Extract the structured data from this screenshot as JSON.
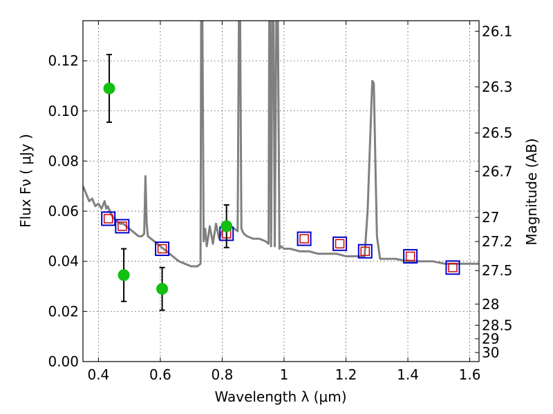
{
  "chart_data": {
    "type": "scatter",
    "title": "",
    "xlabel": "Wavelength  λ (μm)",
    "ylabel": "Flux  Fν  ( μJy )",
    "y2label": "Magnitude (AB)",
    "xlim": [
      0.35,
      1.63
    ],
    "ylim": [
      0.0,
      0.136
    ],
    "grid": true,
    "x_ticks": [
      0.4,
      0.6,
      0.8,
      1.0,
      1.2,
      1.4,
      1.6
    ],
    "x_tick_labels": [
      "0.4",
      "0.6",
      "0.8",
      "1",
      "1.2",
      "1.4",
      "1.6"
    ],
    "y_ticks": [
      0.0,
      0.02,
      0.04,
      0.06,
      0.08,
      0.1,
      0.12
    ],
    "y_tick_labels": [
      "0.00",
      "0.02",
      "0.04",
      "0.06",
      "0.08",
      "0.10",
      "0.12"
    ],
    "y2_ticks": [
      {
        "label": "26.1",
        "flux": 0.1318
      },
      {
        "label": "26.3",
        "flux": 0.1096
      },
      {
        "label": "26.5",
        "flux": 0.0912
      },
      {
        "label": "26.7",
        "flux": 0.0759
      },
      {
        "label": "27",
        "flux": 0.0575
      },
      {
        "label": "27.2",
        "flux": 0.0479
      },
      {
        "label": "27.5",
        "flux": 0.0363
      },
      {
        "label": "28",
        "flux": 0.0229
      },
      {
        "label": "28.5",
        "flux": 0.0145
      },
      {
        "label": "29",
        "flux": 0.0091
      },
      {
        "label": "30",
        "flux": 0.0036
      }
    ],
    "colors": {
      "model": "#808080",
      "observed": "#11c011",
      "model_box": "#0000cc",
      "model_inner": "#cc0000",
      "errorbar": "#000000"
    },
    "series": [
      {
        "kind": "line",
        "x": [
          0.35,
          0.36,
          0.37,
          0.38,
          0.39,
          0.4,
          0.41,
          0.42,
          0.425,
          0.43,
          0.44,
          0.45,
          0.46,
          0.47,
          0.48,
          0.49,
          0.5,
          0.51,
          0.52,
          0.53,
          0.54,
          0.548,
          0.552,
          0.556,
          0.56,
          0.58,
          0.6,
          0.62,
          0.64,
          0.66,
          0.68,
          0.7,
          0.72,
          0.73,
          0.732,
          0.736,
          0.74,
          0.745,
          0.75,
          0.76,
          0.77,
          0.78,
          0.79,
          0.8,
          0.82,
          0.84,
          0.85,
          0.854,
          0.858,
          0.862,
          0.87,
          0.88,
          0.9,
          0.92,
          0.94,
          0.95,
          0.952,
          0.955,
          0.958,
          0.962,
          0.966,
          0.97,
          0.975,
          0.98,
          0.985,
          0.99,
          1.0,
          1.02,
          1.05,
          1.08,
          1.11,
          1.14,
          1.17,
          1.2,
          1.23,
          1.26,
          1.27,
          1.28,
          1.285,
          1.29,
          1.295,
          1.3,
          1.31,
          1.33,
          1.36,
          1.4,
          1.44,
          1.48,
          1.52,
          1.56,
          1.6,
          1.63
        ],
        "y": [
          0.07,
          0.067,
          0.064,
          0.065,
          0.062,
          0.063,
          0.061,
          0.064,
          0.061,
          0.062,
          0.059,
          0.057,
          0.056,
          0.055,
          0.055,
          0.054,
          0.053,
          0.052,
          0.051,
          0.05,
          0.05,
          0.051,
          0.074,
          0.055,
          0.05,
          0.048,
          0.046,
          0.044,
          0.042,
          0.04,
          0.039,
          0.038,
          0.038,
          0.039,
          0.136,
          0.136,
          0.048,
          0.053,
          0.046,
          0.054,
          0.047,
          0.055,
          0.049,
          0.052,
          0.054,
          0.053,
          0.052,
          0.136,
          0.136,
          0.053,
          0.051,
          0.05,
          0.049,
          0.049,
          0.048,
          0.047,
          0.136,
          0.136,
          0.046,
          0.136,
          0.136,
          0.046,
          0.136,
          0.136,
          0.045,
          0.046,
          0.045,
          0.045,
          0.044,
          0.044,
          0.043,
          0.043,
          0.043,
          0.042,
          0.042,
          0.042,
          0.06,
          0.095,
          0.112,
          0.111,
          0.08,
          0.05,
          0.041,
          0.041,
          0.041,
          0.04,
          0.04,
          0.04,
          0.039,
          0.039,
          0.039,
          0.039
        ]
      },
      {
        "kind": "model_photometry",
        "x": [
          0.432,
          0.477,
          0.606,
          0.814,
          1.065,
          1.18,
          1.262,
          1.408,
          1.545
        ],
        "y": [
          0.057,
          0.054,
          0.045,
          0.051,
          0.049,
          0.047,
          0.044,
          0.042,
          0.0375
        ]
      },
      {
        "kind": "observed",
        "x": [
          0.435,
          0.482,
          0.606,
          0.814
        ],
        "y": [
          0.109,
          0.0345,
          0.029,
          0.054
        ],
        "yerr": [
          0.0135,
          0.0105,
          0.0085,
          0.0085
        ]
      }
    ]
  }
}
